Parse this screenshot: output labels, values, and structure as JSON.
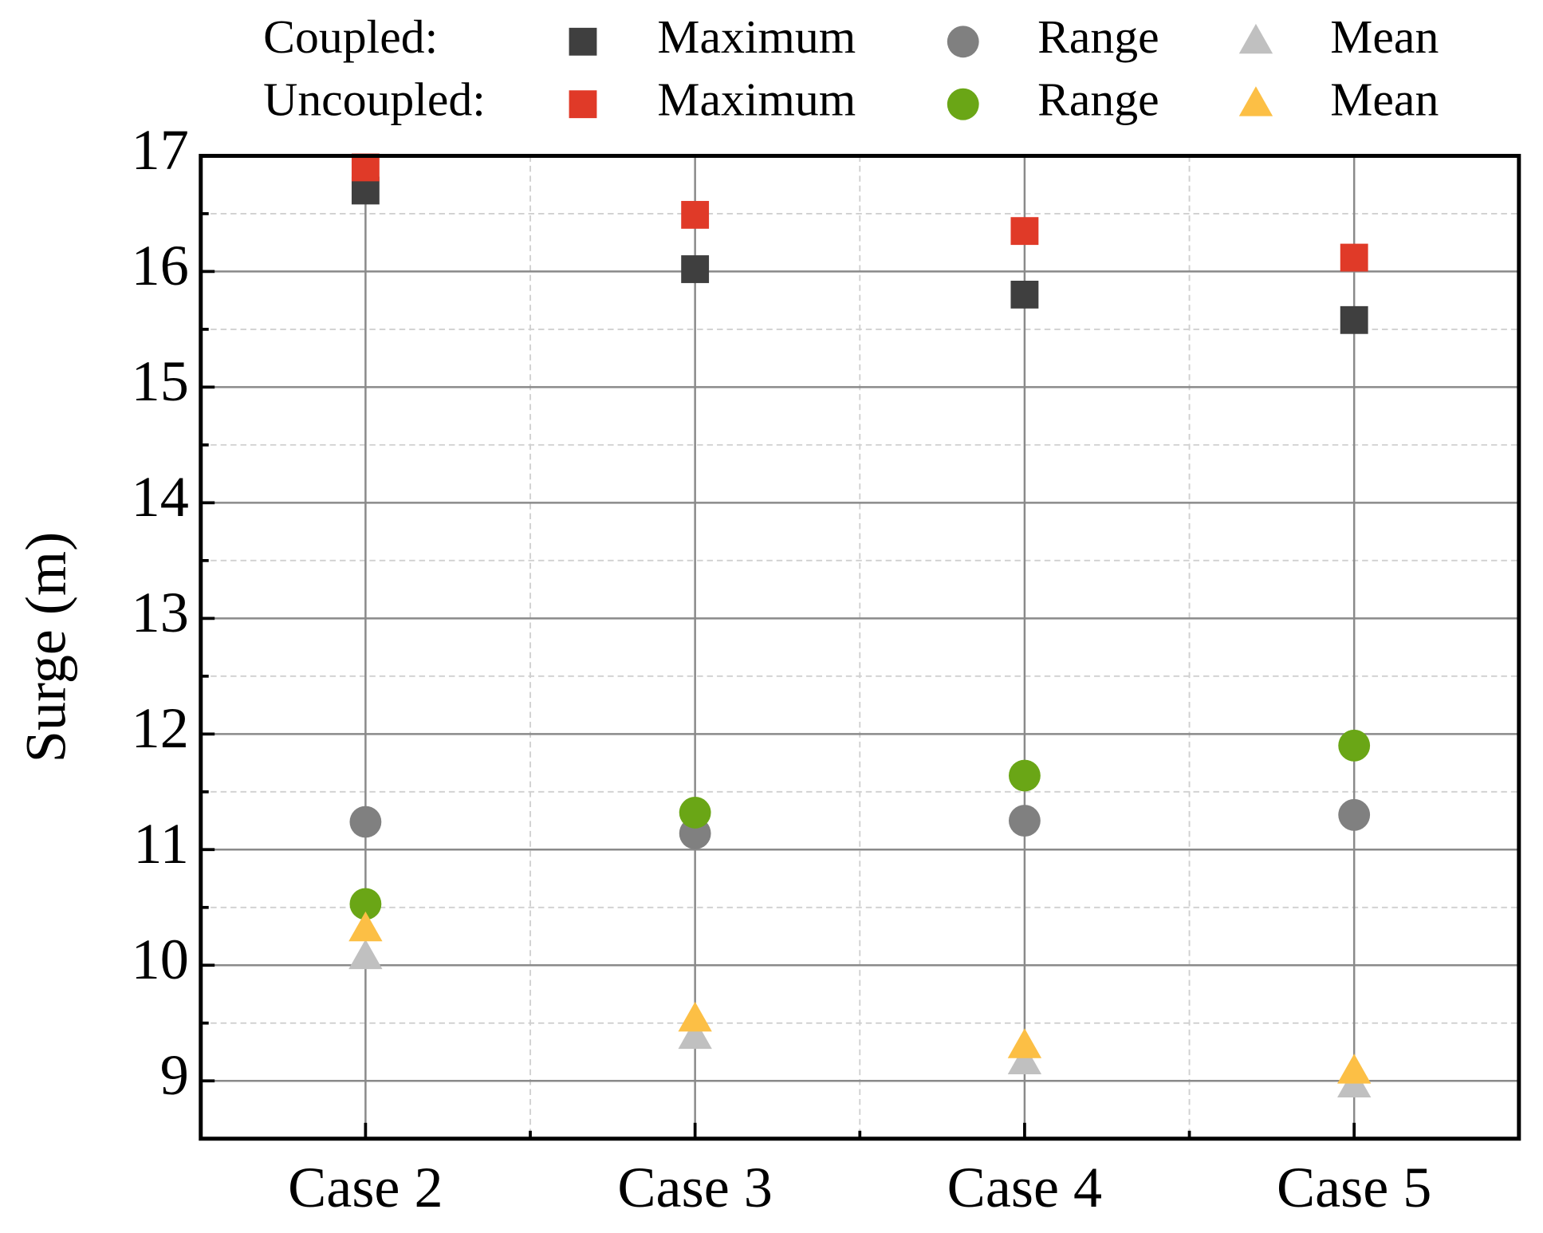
{
  "chart_data": {
    "type": "scatter",
    "y_label": "Surge (m)",
    "categories": [
      "Case 2",
      "Case 3",
      "Case 4",
      "Case 5"
    ],
    "ylim": [
      8.5,
      17
    ],
    "yticks": [
      9,
      10,
      11,
      12,
      13,
      14,
      15,
      16,
      17
    ],
    "yminor_ticks": [
      8.5,
      9.5,
      10.5,
      11.5,
      12.5,
      13.5,
      14.5,
      15.5,
      16.5
    ],
    "grid": true,
    "series_groups": [
      {
        "name": "Coupled:",
        "series": [
          {
            "name": "Maximum",
            "marker": "square",
            "color": "#3f3f3f",
            "values": [
              16.7,
              16.02,
              15.8,
              15.58
            ]
          },
          {
            "name": "Range",
            "marker": "circle",
            "color": "#808080",
            "values": [
              11.24,
              11.14,
              11.25,
              11.3
            ]
          },
          {
            "name": "Mean",
            "marker": "triangle",
            "color": "#c0c0c0",
            "values": [
              10.07,
              9.38,
              9.16,
              8.96
            ]
          }
        ]
      },
      {
        "name": "Uncoupled:",
        "series": [
          {
            "name": "Maximum",
            "marker": "square",
            "color": "#e03a28",
            "values": [
              16.9,
              16.49,
              16.35,
              16.12
            ]
          },
          {
            "name": "Range",
            "marker": "circle",
            "color": "#6aa616",
            "values": [
              10.53,
              11.32,
              11.64,
              11.9
            ]
          },
          {
            "name": "Mean",
            "marker": "triangle",
            "color": "#fcbf45",
            "values": [
              10.31,
              9.53,
              9.3,
              9.08
            ]
          }
        ]
      }
    ]
  }
}
